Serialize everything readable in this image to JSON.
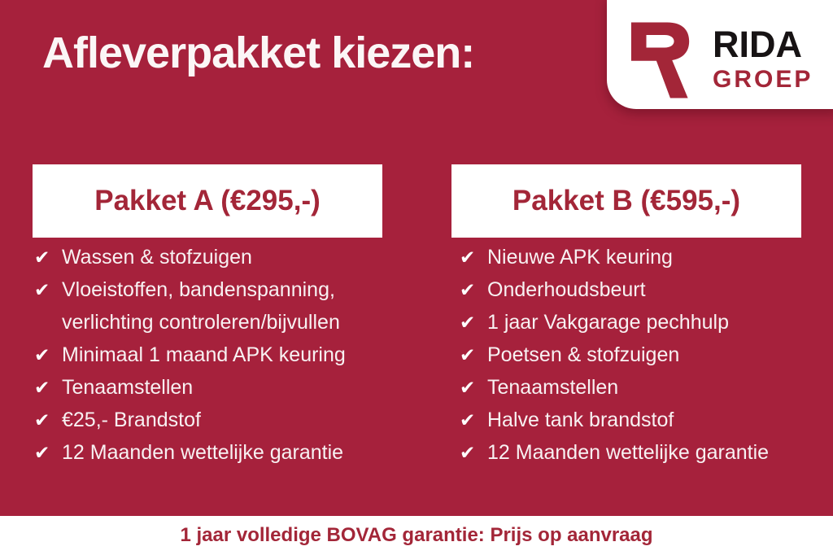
{
  "theme": {
    "background_red": "#A6213C",
    "brand_red": "#A32638",
    "text_white": "#F8F1F2",
    "logo_black": "#171314",
    "card_white": "#FFFFFF"
  },
  "header": {
    "title": "Afleverpakket kiezen:"
  },
  "logo": {
    "mark_letter": "R",
    "name": "RIDA",
    "subname": "GROEP"
  },
  "icons": {
    "check": "✔"
  },
  "packages": [
    {
      "title": "Pakket A (€295,-)",
      "items": [
        "Wassen & stofzuigen",
        "Vloeistoffen, bandenspanning, verlichting controleren/bijvullen",
        "Minimaal 1 maand APK keuring",
        "Tenaamstellen",
        "€25,- Brandstof",
        "12 Maanden wettelijke garantie"
      ]
    },
    {
      "title": "Pakket B (€595,-)",
      "items": [
        "Nieuwe APK keuring",
        "Onderhoudsbeurt",
        "1 jaar Vakgarage pechhulp",
        "Poetsen & stofzuigen",
        "Tenaamstellen",
        "Halve tank brandstof",
        "12 Maanden wettelijke garantie"
      ]
    }
  ],
  "footer": {
    "text": "1 jaar volledige BOVAG garantie: Prijs op aanvraag"
  }
}
